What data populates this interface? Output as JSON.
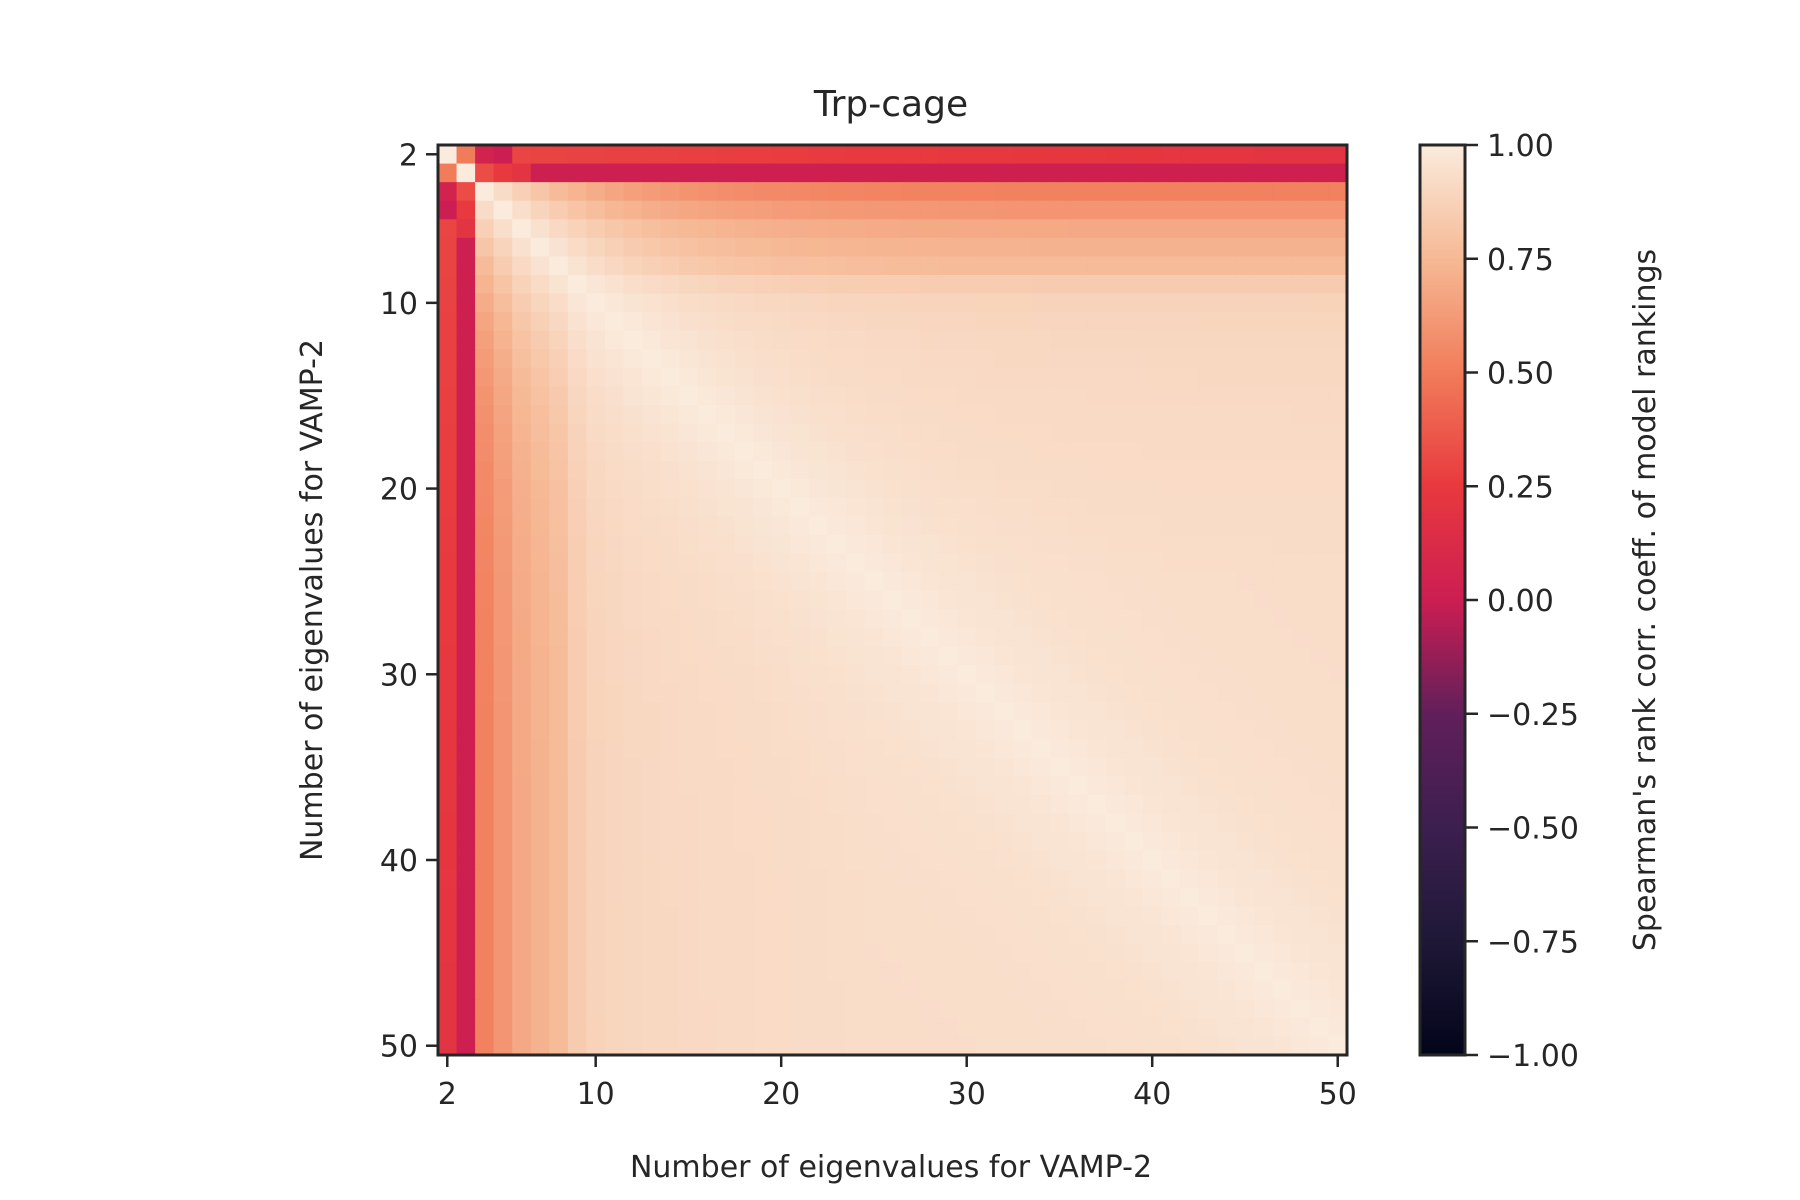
{
  "chart_data": {
    "type": "heatmap",
    "title": "Trp-cage",
    "xlabel": "Number of eigenvalues for VAMP-2",
    "ylabel": "Number of eigenvalues for VAMP-2",
    "x_range": [
      2,
      50
    ],
    "y_range": [
      2,
      50
    ],
    "x_ticks": [
      2,
      10,
      20,
      30,
      40,
      50
    ],
    "y_ticks": [
      2,
      10,
      20,
      30,
      40,
      50
    ],
    "x_tick_labels": [
      "2",
      "10",
      "20",
      "30",
      "40",
      "50"
    ],
    "y_tick_labels": [
      "2",
      "10",
      "20",
      "30",
      "40",
      "50"
    ],
    "y_axis_inverted": true,
    "colorbar": {
      "label": "Spearman's rank corr. coeff. of model rankings",
      "vmin": -1.0,
      "vmax": 1.0,
      "ticks": [
        1.0,
        0.75,
        0.5,
        0.25,
        0.0,
        -0.25,
        -0.5,
        -0.75,
        -1.0
      ],
      "tick_labels": [
        "1.00",
        "0.75",
        "0.50",
        "0.25",
        "0.00",
        "−0.25",
        "−0.50",
        "−0.75",
        "−1.00"
      ],
      "colormap": "rocket"
    },
    "row_profile": {
      "n": [
        2,
        3,
        4,
        5,
        6,
        7,
        8,
        9,
        10,
        12,
        15,
        20,
        25,
        30,
        40,
        50
      ],
      "rho_vs_large_n": [
        0.2,
        0.02,
        0.52,
        0.6,
        0.68,
        0.72,
        0.76,
        0.84,
        0.88,
        0.9,
        0.91,
        0.92,
        0.93,
        0.93,
        0.93,
        0.93
      ]
    },
    "pair_rho": [
      {
        "a": 2,
        "b": 3,
        "value": 0.5
      },
      {
        "a": 2,
        "b": 4,
        "value": 0.05
      },
      {
        "a": 2,
        "b": 5,
        "value": 0.0
      },
      {
        "a": 3,
        "b": 4,
        "value": 0.32
      },
      {
        "a": 3,
        "b": 5,
        "value": 0.25
      },
      {
        "a": 3,
        "b": 6,
        "value": 0.2
      }
    ]
  }
}
